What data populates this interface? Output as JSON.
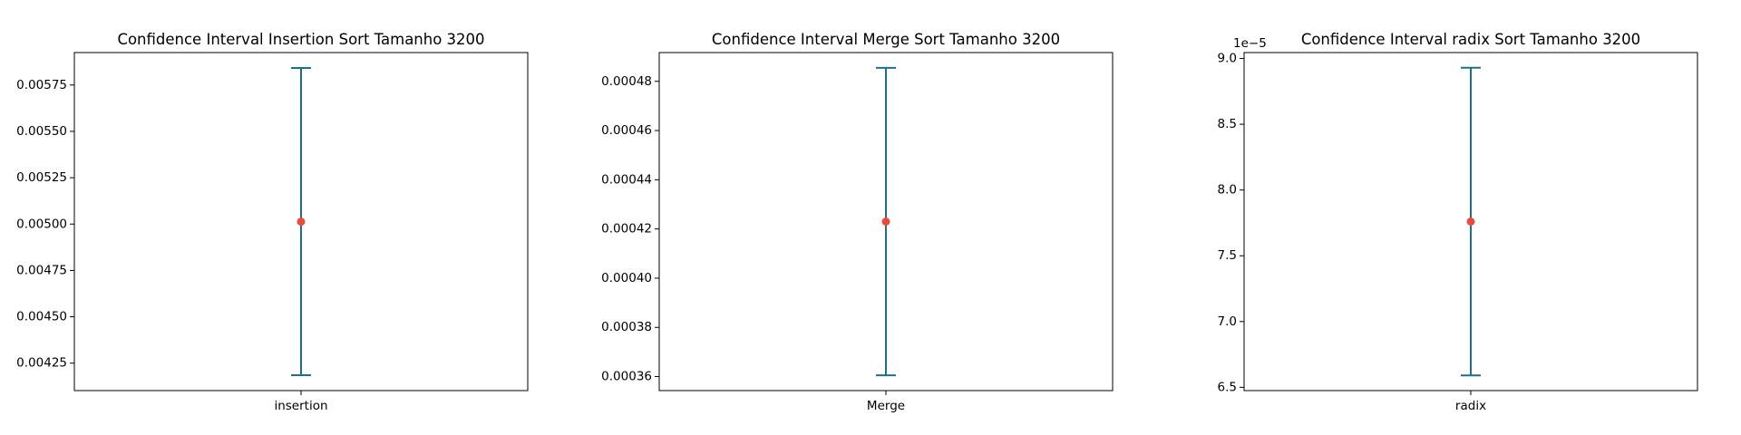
{
  "chart_data": [
    {
      "type": "errorbar",
      "title": "Confidence Interval Insertion Sort Tamanho 3200",
      "xlabel": "",
      "ylabel": "",
      "categories": [
        "insertion"
      ],
      "mean": 0.005013,
      "lower": 0.004185,
      "upper": 0.005842,
      "ylim": [
        0.004102,
        0.005925
      ],
      "yticks": [
        0.00425,
        0.0045,
        0.00475,
        0.005,
        0.00525,
        0.0055,
        0.00575
      ],
      "ytick_labels": [
        "0.00425",
        "0.00450",
        "0.00475",
        "0.00500",
        "0.00525",
        "0.00550",
        "0.00575"
      ],
      "y_offset_label": ""
    },
    {
      "type": "errorbar",
      "title": "Confidence Interval Merge Sort Tamanho 3200",
      "xlabel": "",
      "ylabel": "",
      "categories": [
        "Merge"
      ],
      "mean": 0.000423,
      "lower": 0.0003605,
      "upper": 0.0004855,
      "ylim": [
        0.0003543,
        0.0004917
      ],
      "yticks": [
        0.00036,
        0.00038,
        0.0004,
        0.00042,
        0.00044,
        0.00046,
        0.00048
      ],
      "ytick_labels": [
        "0.00036",
        "0.00038",
        "0.00040",
        "0.00042",
        "0.00044",
        "0.00046",
        "0.00048"
      ],
      "y_offset_label": ""
    },
    {
      "type": "errorbar",
      "title": "Confidence Interval radix Sort Tamanho 3200",
      "xlabel": "",
      "ylabel": "",
      "categories": [
        "radix"
      ],
      "mean": 7.76e-05,
      "lower": 6.59e-05,
      "upper": 8.93e-05,
      "ylim": [
        6.475e-05,
        9.045e-05
      ],
      "yticks": [
        6.5e-05,
        7e-05,
        7.5e-05,
        8e-05,
        8.5e-05,
        9e-05
      ],
      "ytick_labels": [
        "6.5",
        "7.0",
        "7.5",
        "8.0",
        "8.5",
        "9.0"
      ],
      "y_offset_label": "1e−5"
    }
  ],
  "colors": {
    "errorbar": "#1f6f8b",
    "mean_marker": "#e74c3c",
    "axes": "#000000"
  }
}
